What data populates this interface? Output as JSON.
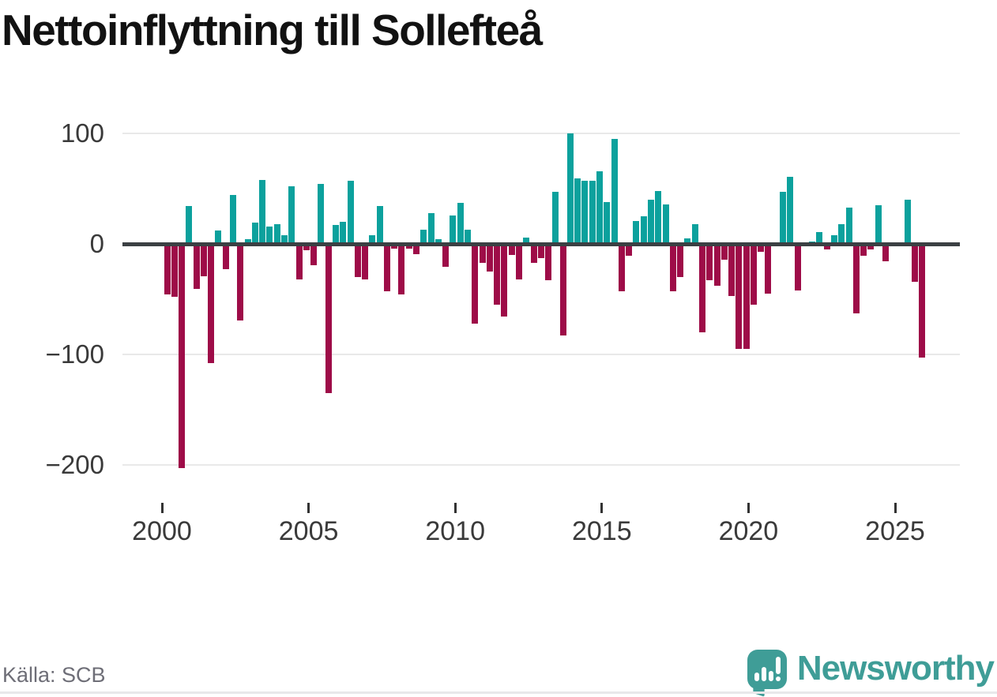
{
  "title": "Nettoinflyttning till Sollefteå",
  "source": "Källa: SCB",
  "logo": {
    "brand": "Newsworthy",
    "icon": "speech-bubble-bar-chart-exclamation"
  },
  "colors": {
    "background": "#ffffff",
    "positive_bar": "#0ca19d",
    "negative_bar": "#9e0c48",
    "zero_line": "#3b4043",
    "gridline": "#e9e9e9",
    "axis_text": "#3a3a3a",
    "title_text": "#121212",
    "source_text": "#6e6e77",
    "logo_teal": "#3f9d97"
  },
  "chart_data": {
    "type": "bar",
    "title": "Nettoinflyttning till Sollefteå",
    "xlabel": "",
    "ylabel": "",
    "grid": "horizontal",
    "legend": "none",
    "ylim": [
      -215,
      115
    ],
    "y_ticks": [
      100,
      0,
      -100,
      -200
    ],
    "y_tick_labels": [
      "100",
      "0",
      "−100",
      "−200"
    ],
    "x_tick_labels": [
      "2000",
      "2005",
      "2010",
      "2015",
      "2020",
      "2025"
    ],
    "quarters_per_x_tick": 20,
    "categories": [
      "2000 Q1",
      "2000 Q2",
      "2000 Q3",
      "2000 Q4",
      "2001 Q1",
      "2001 Q2",
      "2001 Q3",
      "2001 Q4",
      "2002 Q1",
      "2002 Q2",
      "2002 Q3",
      "2002 Q4",
      "2003 Q1",
      "2003 Q2",
      "2003 Q3",
      "2003 Q4",
      "2004 Q1",
      "2004 Q2",
      "2004 Q3",
      "2004 Q4",
      "2005 Q1",
      "2005 Q2",
      "2005 Q3",
      "2005 Q4",
      "2006 Q1",
      "2006 Q2",
      "2006 Q3",
      "2006 Q4",
      "2007 Q1",
      "2007 Q2",
      "2007 Q3",
      "2007 Q4",
      "2008 Q1",
      "2008 Q2",
      "2008 Q3",
      "2008 Q4",
      "2009 Q1",
      "2009 Q2",
      "2009 Q3",
      "2009 Q4",
      "2010 Q1",
      "2010 Q2",
      "2010 Q3",
      "2010 Q4",
      "2011 Q1",
      "2011 Q2",
      "2011 Q3",
      "2011 Q4",
      "2012 Q1",
      "2012 Q2",
      "2012 Q3",
      "2012 Q4",
      "2013 Q1",
      "2013 Q2",
      "2013 Q3",
      "2013 Q4",
      "2014 Q1",
      "2014 Q2",
      "2014 Q3",
      "2014 Q4",
      "2015 Q1",
      "2015 Q2",
      "2015 Q3",
      "2015 Q4",
      "2016 Q1",
      "2016 Q2",
      "2016 Q3",
      "2016 Q4",
      "2017 Q1",
      "2017 Q2",
      "2017 Q3",
      "2017 Q4",
      "2018 Q1",
      "2018 Q2",
      "2018 Q3",
      "2018 Q4",
      "2019 Q1",
      "2019 Q2",
      "2019 Q3",
      "2019 Q4",
      "2020 Q1",
      "2020 Q2",
      "2020 Q3",
      "2020 Q4",
      "2021 Q1",
      "2021 Q2",
      "2021 Q3",
      "2021 Q4",
      "2022 Q1",
      "2022 Q2",
      "2022 Q3",
      "2022 Q4",
      "2023 Q1",
      "2023 Q2",
      "2023 Q3",
      "2023 Q4",
      "2024 Q1",
      "2024 Q2",
      "2024 Q3",
      "2024 Q4",
      "2025 Q1",
      "2025 Q2",
      "2025 Q3",
      "2025 Q4"
    ],
    "values": [
      -46,
      -48,
      -203,
      34,
      -41,
      -29,
      -108,
      12,
      -23,
      44,
      -69,
      4,
      19,
      58,
      16,
      18,
      8,
      52,
      -32,
      -6,
      -19,
      54,
      -135,
      17,
      20,
      57,
      -30,
      -32,
      8,
      34,
      -43,
      -4,
      -46,
      -4,
      -9,
      13,
      28,
      4,
      -21,
      26,
      37,
      13,
      -72,
      -17,
      -25,
      -55,
      -66,
      -10,
      -32,
      6,
      -17,
      -13,
      -33,
      47,
      -83,
      100,
      59,
      57,
      57,
      66,
      38,
      95,
      -43,
      -11,
      21,
      25,
      40,
      48,
      36,
      -43,
      -30,
      5,
      18,
      -80,
      -33,
      -38,
      -14,
      -47,
      -95,
      -95,
      -55,
      -7,
      -45,
      0,
      47,
      61,
      -42,
      0,
      2,
      11,
      -5,
      8,
      18,
      33,
      -63,
      -11,
      -5,
      35,
      -16,
      0,
      0,
      40,
      -34,
      -103
    ]
  }
}
